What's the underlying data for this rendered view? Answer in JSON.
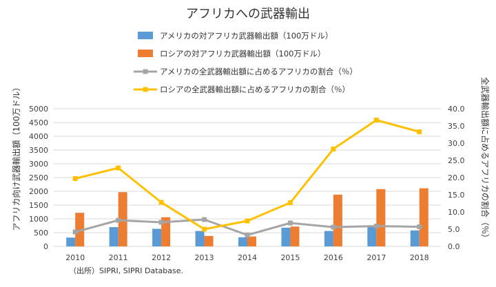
{
  "chart_data": {
    "type": "bar",
    "title": "アフリカへの武器輸出",
    "categories": [
      "2010",
      "2011",
      "2012",
      "2013",
      "2014",
      "2015",
      "2016",
      "2017",
      "2018"
    ],
    "ylabel": "アフリカ向け武器輸出額（100万ドル）",
    "y2label": "全武器輸出額に占めるアフリカの割合（％）",
    "ylim": [
      0,
      5000
    ],
    "y2lim": [
      0,
      40
    ],
    "yticks": [
      "0",
      "500",
      "1000",
      "1500",
      "2000",
      "2500",
      "3000",
      "3500",
      "4000",
      "4500",
      "5000"
    ],
    "y2ticks": [
      "0.0",
      "5.0",
      "10.0",
      "15.0",
      "20.0",
      "25.0",
      "30.0",
      "35.0",
      "40.0"
    ],
    "grid": true,
    "source": "（出所）SIPRI, SIPRI Database.",
    "series": [
      {
        "name": "アメリカの対アフリカ武器輸出額（100万ドル）",
        "kind": "bar",
        "axis": "left",
        "color": "#5b9bd5",
        "values": [
          320,
          700,
          640,
          560,
          330,
          680,
          560,
          700,
          580
        ]
      },
      {
        "name": "ロシアの対アフリカ武器輸出額（100万ドル）",
        "kind": "bar",
        "axis": "left",
        "color": "#ed7d31",
        "values": [
          1220,
          1970,
          1060,
          380,
          360,
          720,
          1880,
          2080,
          2110
        ]
      },
      {
        "name": "アメリカの全武器輸出額に占めるアフリカの割合（％）",
        "kind": "line",
        "axis": "right",
        "color": "#a5a5a5",
        "values": [
          4.2,
          7.6,
          7.0,
          7.8,
          3.3,
          6.8,
          5.6,
          5.9,
          5.7
        ]
      },
      {
        "name": "ロシアの全武器輸出額に占めるアフリカの割合（％）",
        "kind": "line",
        "axis": "right",
        "color": "#ffc000",
        "values": [
          19.7,
          22.8,
          12.8,
          5.0,
          7.4,
          12.7,
          28.3,
          36.7,
          33.3
        ]
      }
    ]
  }
}
